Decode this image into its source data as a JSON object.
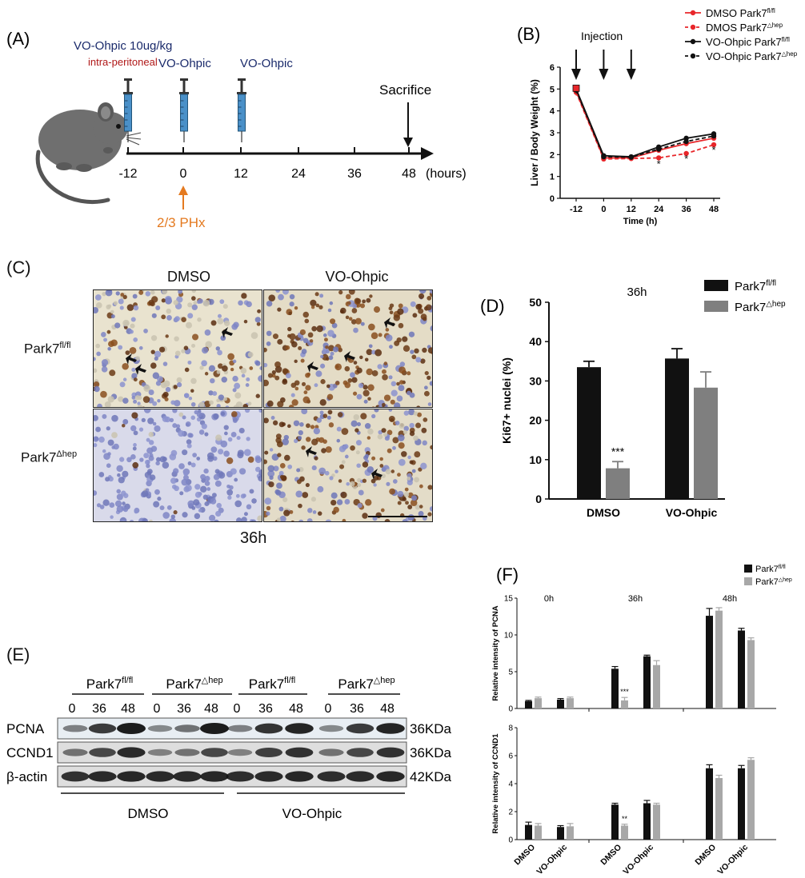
{
  "panelA": {
    "label": "(A)",
    "dose_label": "VO-Ohpic 10ug/kg",
    "route_label": "intra-peritoneal",
    "inj2_label": "VO-Ohpic",
    "inj3_label": "VO-Ohpic",
    "sacrifice_label": "Sacrifice",
    "surgery_label": "2/3 PHx",
    "timeline_ticks": [
      "-12",
      "0",
      "12",
      "24",
      "36",
      "48"
    ],
    "unit_label": "(hours)"
  },
  "panelB": {
    "label": "(B)",
    "injection_label": "Injection",
    "legend": [
      {
        "base": "DMSO Park7",
        "sup": "fl/fl",
        "color": "#e8262a",
        "dashed": false
      },
      {
        "base": "DMOS Park7",
        "sup": "△hep",
        "color": "#e8262a",
        "dashed": true
      },
      {
        "base": "VO-Ohpic Park7",
        "sup": "fl/fl",
        "color": "#111111",
        "dashed": false
      },
      {
        "base": "VO-Ohpic Park7",
        "sup": "△hep",
        "color": "#111111",
        "dashed": true
      }
    ]
  },
  "panelC": {
    "label": "(C)",
    "col_labels": [
      "DMSO",
      "VO-Ohpic"
    ],
    "row_labels": [
      {
        "base": "Park7",
        "sup": "fl/fl"
      },
      {
        "base": "Park7",
        "sup": "Δhep"
      }
    ],
    "time_label": "36h"
  },
  "panelD": {
    "label": "(D)",
    "legend": [
      {
        "base": "Park7",
        "sup": "fl/fl"
      },
      {
        "base": "Park7",
        "sup": "△hep"
      }
    ]
  },
  "panelE": {
    "label": "(E)",
    "group_headers": [
      {
        "base": "Park7",
        "sup": "fl/fl"
      },
      {
        "base": "Park7",
        "sup": "△hep"
      },
      {
        "base": "Park7",
        "sup": "fl/fl"
      },
      {
        "base": "Park7",
        "sup": "△hep"
      }
    ],
    "lane_labels": [
      "0",
      "36",
      "48",
      "0",
      "36",
      "48",
      "0",
      "36",
      "48",
      "0",
      "36",
      "48"
    ],
    "rows": [
      {
        "protein": "PCNA",
        "size": "36KDa"
      },
      {
        "protein": "CCND1",
        "size": "36KDa"
      },
      {
        "protein": "β-actin",
        "size": "42KDa"
      }
    ],
    "treatment_labels": [
      "DMSO",
      "VO-Ohpic"
    ]
  },
  "panelF": {
    "label": "(F)",
    "legend": [
      {
        "base": "Park7",
        "sup": "fl/fl"
      },
      {
        "base": "Park7",
        "sup": "△hep"
      }
    ],
    "colors": {
      "fl": "#111111",
      "hep": "#a8a8a8"
    }
  },
  "chart_data": [
    {
      "id": "B",
      "type": "line",
      "title": "",
      "xlabel": "Time (h)",
      "ylabel": "Liver / Body Weight (%)",
      "x": [
        -12,
        0,
        12,
        24,
        36,
        48
      ],
      "xticks": [
        "-12",
        "0",
        "12",
        "24",
        "36",
        "48"
      ],
      "ylim": [
        0,
        6
      ],
      "yticks": [
        "0",
        "1",
        "2",
        "3",
        "4",
        "5",
        "6"
      ],
      "injections_at": [
        -12,
        0,
        12
      ],
      "series": [
        {
          "name": "DMSO Park7 fl/fl",
          "values": [
            4.9,
            1.85,
            1.85,
            2.2,
            2.5,
            2.75
          ]
        },
        {
          "name": "DMOS Park7 △hep",
          "values": [
            4.85,
            1.8,
            1.82,
            1.85,
            2.05,
            2.45
          ]
        },
        {
          "name": "VO-Ohpic Park7 fl/fl",
          "values": [
            5.0,
            1.95,
            1.9,
            2.35,
            2.75,
            2.95
          ]
        },
        {
          "name": "VO-Ohpic Park7 △hep",
          "values": [
            4.95,
            1.9,
            1.88,
            2.25,
            2.6,
            2.85
          ]
        }
      ],
      "errors": [
        0.15,
        0.05,
        0.05,
        0.08,
        0.1,
        0.1
      ],
      "significance": [
        {
          "x": 24,
          "text": "*"
        },
        {
          "x": 36,
          "text": "*"
        },
        {
          "x": 48,
          "text": "*"
        }
      ],
      "legend_position": "top-right",
      "grid": false
    },
    {
      "id": "D",
      "type": "bar",
      "title": "36h",
      "xlabel": "",
      "ylabel": "Ki67+ nuclei (%)",
      "categories": [
        "DMSO",
        "VO-Ohpic"
      ],
      "ylim": [
        0,
        50
      ],
      "yticks": [
        "0",
        "10",
        "20",
        "30",
        "40",
        "50"
      ],
      "series": [
        {
          "name": "Park7 fl/fl",
          "values": [
            33.5,
            35.7
          ],
          "errors": [
            1.5,
            2.5
          ]
        },
        {
          "name": "Park7 △hep",
          "values": [
            7.8,
            28.3
          ],
          "errors": [
            1.7,
            4.0
          ]
        }
      ],
      "significance": [
        {
          "category": "DMSO",
          "series": 1,
          "text": "***"
        }
      ],
      "legend_position": "top-right",
      "grid": false
    },
    {
      "id": "F-PCNA",
      "type": "bar",
      "title": "",
      "xlabel": "",
      "ylabel": "Relative intensity of PCNA",
      "time_labels": [
        "0h",
        "36h",
        "48h"
      ],
      "categories": [
        "DMSO",
        "VO-Ohpic",
        "DMSO",
        "VO-Ohpic",
        "DMSO",
        "VO-Ohpic"
      ],
      "ylim": [
        0,
        15
      ],
      "yticks": [
        "0",
        "5",
        "10",
        "15"
      ],
      "series": [
        {
          "name": "Park7 fl/fl",
          "values": [
            1.0,
            1.2,
            5.4,
            7.1,
            12.6,
            10.6
          ],
          "errors": [
            0.1,
            0.15,
            0.3,
            0.15,
            1.0,
            0.3
          ]
        },
        {
          "name": "Park7 △hep",
          "values": [
            1.4,
            1.4,
            1.1,
            5.9,
            13.3,
            9.3
          ],
          "errors": [
            0.15,
            0.15,
            0.4,
            0.6,
            0.4,
            0.3
          ]
        }
      ],
      "significance": [
        {
          "index": 2,
          "series": 1,
          "text": "***"
        }
      ],
      "grid": false
    },
    {
      "id": "F-CCND1",
      "type": "bar",
      "title": "",
      "xlabel": "",
      "ylabel": "Relative intensity of CCND1",
      "categories": [
        "DMSO",
        "VO-Ohpic",
        "DMSO",
        "VO-Ohpic",
        "DMSO",
        "VO-Ohpic"
      ],
      "ylim": [
        0,
        8
      ],
      "yticks": [
        "0",
        "2",
        "4",
        "6",
        "8"
      ],
      "series": [
        {
          "name": "Park7 fl/fl",
          "values": [
            1.05,
            0.9,
            2.5,
            2.6,
            5.1,
            5.1
          ],
          "errors": [
            0.2,
            0.1,
            0.1,
            0.2,
            0.25,
            0.2
          ]
        },
        {
          "name": "Park7 △hep",
          "values": [
            1.0,
            0.95,
            1.0,
            2.5,
            4.4,
            5.7
          ],
          "errors": [
            0.15,
            0.2,
            0.1,
            0.1,
            0.2,
            0.15
          ]
        }
      ],
      "significance": [
        {
          "index": 2,
          "series": 1,
          "text": "**"
        }
      ],
      "grid": false
    }
  ]
}
